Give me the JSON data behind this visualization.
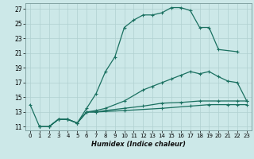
{
  "title": "",
  "xlabel": "Humidex (Indice chaleur)",
  "bg_color": "#cce8e8",
  "grid_color": "#b0d0d0",
  "line_color": "#1a7060",
  "series1": [
    [
      0,
      14
    ],
    [
      1,
      11
    ],
    [
      2,
      11
    ],
    [
      3,
      12
    ],
    [
      4,
      12
    ],
    [
      5,
      11.5
    ],
    [
      6,
      13.5
    ],
    [
      7,
      15.5
    ],
    [
      8,
      18.5
    ],
    [
      9,
      20.5
    ],
    [
      10,
      24.5
    ],
    [
      11,
      25.5
    ],
    [
      12,
      26.2
    ],
    [
      13,
      26.2
    ],
    [
      14,
      26.5
    ],
    [
      15,
      27.2
    ],
    [
      16,
      27.2
    ],
    [
      17,
      26.8
    ],
    [
      18,
      24.5
    ],
    [
      19,
      24.5
    ],
    [
      20,
      21.5
    ],
    [
      22,
      21.2
    ]
  ],
  "series2": [
    [
      1,
      11
    ],
    [
      2,
      11
    ],
    [
      3,
      12
    ],
    [
      4,
      12
    ],
    [
      5,
      11.5
    ],
    [
      6,
      13
    ],
    [
      7,
      13.2
    ],
    [
      8,
      13.5
    ],
    [
      10,
      14.5
    ],
    [
      12,
      16
    ],
    [
      13,
      16.5
    ],
    [
      14,
      17
    ],
    [
      15,
      17.5
    ],
    [
      16,
      18
    ],
    [
      17,
      18.5
    ],
    [
      18,
      18.2
    ],
    [
      19,
      18.5
    ],
    [
      20,
      17.8
    ],
    [
      21,
      17.2
    ],
    [
      22,
      17
    ],
    [
      23,
      14.5
    ]
  ],
  "series3": [
    [
      1,
      11
    ],
    [
      2,
      11
    ],
    [
      3,
      12
    ],
    [
      4,
      12
    ],
    [
      5,
      11.5
    ],
    [
      6,
      13
    ],
    [
      7,
      13
    ],
    [
      8,
      13.2
    ],
    [
      10,
      13.5
    ],
    [
      12,
      13.8
    ],
    [
      14,
      14.2
    ],
    [
      16,
      14.3
    ],
    [
      18,
      14.5
    ],
    [
      20,
      14.5
    ],
    [
      22,
      14.5
    ],
    [
      23,
      14.5
    ]
  ],
  "series4": [
    [
      1,
      11
    ],
    [
      2,
      11
    ],
    [
      3,
      12
    ],
    [
      4,
      12
    ],
    [
      5,
      11.5
    ],
    [
      6,
      13
    ],
    [
      7,
      13
    ],
    [
      10,
      13.2
    ],
    [
      14,
      13.5
    ],
    [
      17,
      13.8
    ],
    [
      19,
      14
    ],
    [
      21,
      14
    ],
    [
      22,
      14
    ],
    [
      23,
      14
    ]
  ],
  "xlim": [
    -0.5,
    23.5
  ],
  "ylim": [
    10.5,
    27.8
  ],
  "yticks": [
    11,
    13,
    15,
    17,
    19,
    21,
    23,
    25,
    27
  ],
  "xticks": [
    0,
    1,
    2,
    3,
    4,
    5,
    6,
    7,
    8,
    9,
    10,
    11,
    12,
    13,
    14,
    15,
    16,
    17,
    18,
    19,
    20,
    21,
    22,
    23
  ]
}
